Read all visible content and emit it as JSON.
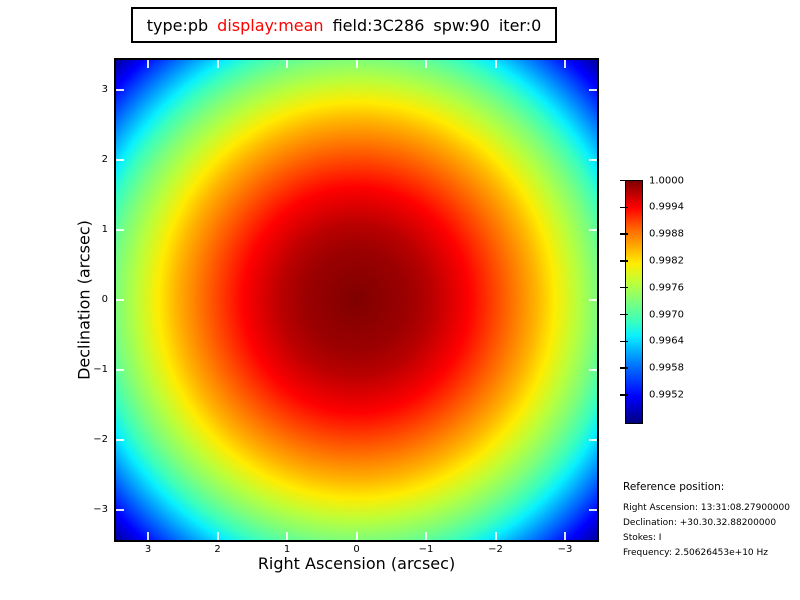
{
  "title": {
    "segments": [
      {
        "text": "type:pb",
        "color": "#000000"
      },
      {
        "text": "display:mean",
        "color": "#ff0000"
      },
      {
        "text": "field:3C286",
        "color": "#000000"
      },
      {
        "text": "spw:90",
        "color": "#000000"
      },
      {
        "text": "iter:0",
        "color": "#000000"
      }
    ]
  },
  "plot": {
    "xlabel": "Right Ascension (arcsec)",
    "ylabel": "Declination (arcsec)",
    "x_tick_labels": [
      "3",
      "2",
      "1",
      "0",
      "−1",
      "−2",
      "−3"
    ],
    "y_tick_labels": [
      "3",
      "2",
      "1",
      "0",
      "−1",
      "−2",
      "−3"
    ]
  },
  "colorbar": {
    "labels": [
      "1.0000",
      "0.9994",
      "0.9988",
      "0.9982",
      "0.9976",
      "0.9970",
      "0.9964",
      "0.9958",
      "0.9952"
    ]
  },
  "reference": {
    "heading": "Reference position:",
    "lines": [
      "Right Ascension: 13:31:08.27900000",
      "Declination: +30.30.32.88200000",
      "Stokes: I",
      "Frequency: 2.50626453e+10 Hz"
    ]
  },
  "colors": {
    "title_accent": "#ff0000",
    "text": "#000000",
    "peak_color": "#7f0000",
    "min_color": "#000080",
    "colormap": "jet"
  },
  "chart_data": {
    "type": "heatmap",
    "title": "type:pb display:mean field:3C286 spw:90 iter:0",
    "xlabel": "Right Ascension (arcsec)",
    "ylabel": "Declination (arcsec)",
    "x_ticks": [
      3,
      2,
      1,
      0,
      -1,
      -2,
      -3
    ],
    "y_ticks": [
      3,
      2,
      1,
      0,
      -1,
      -2,
      -3
    ],
    "xlim": [
      3.46,
      -3.46
    ],
    "ylim": [
      -3.46,
      3.46
    ],
    "colormap": "jet",
    "colorbar_ticks": [
      1.0,
      0.9994,
      0.9988,
      0.9982,
      0.9976,
      0.997,
      0.9964,
      0.9958,
      0.9952
    ],
    "value_range": [
      0.9946,
      1.0
    ],
    "pattern": "radially symmetric primary-beam response peaking at 1.0 at field center (0,0) and falling roughly quadratically to ~0.9946 at the image corners (dark red center through red, orange, yellow, green, cyan, blue to dark blue corners)",
    "annotations": [
      "Reference position:",
      "Right Ascension: 13:31:08.27900000",
      "Declination: +30.30.32.88200000",
      "Stokes: I",
      "Frequency: 2.50626453e+10 Hz"
    ],
    "legend_position": "colorbar right of plot",
    "grid": false
  }
}
